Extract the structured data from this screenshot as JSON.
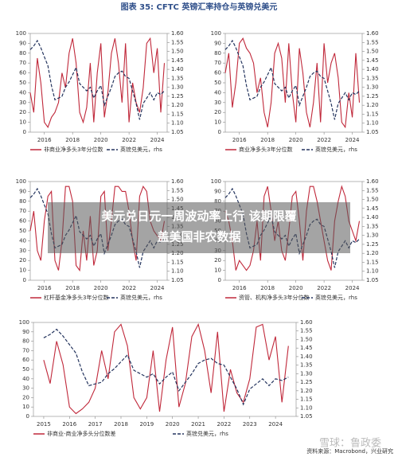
{
  "header": {
    "title": "图表 35: CFTC 英镑汇率持仓与英镑兑美元"
  },
  "overlay": {
    "lines": [
      "美元兑日元一周波动率上行 该期限覆",
      "盖美国非农数据"
    ]
  },
  "footer": {
    "source": "资料来源：Macrobond，兴业研究",
    "watermark": "雪球：鲁政委"
  },
  "chart_data": [
    {
      "type": "line",
      "x": [
        2015,
        2015.25,
        2015.5,
        2015.75,
        2016,
        2016.25,
        2016.5,
        2016.75,
        2017,
        2017.25,
        2017.5,
        2017.75,
        2018,
        2018.25,
        2018.5,
        2018.75,
        2019,
        2019.25,
        2019.5,
        2019.75,
        2020,
        2020.25,
        2020.5,
        2020.75,
        2021,
        2021.25,
        2021.5,
        2021.75,
        2022,
        2022.25,
        2022.5,
        2022.75,
        2023,
        2023.25,
        2023.5,
        2023.75,
        2024,
        2024.25,
        2024.5
      ],
      "xlim": [
        2015,
        2024.7
      ],
      "xticks": [
        2016,
        2018,
        2020,
        2022,
        2024
      ],
      "ylim": [
        0,
        100
      ],
      "yticks": [
        0,
        10,
        20,
        30,
        40,
        50,
        60,
        70,
        80,
        90,
        100
      ],
      "y2lim": [
        1.05,
        1.6
      ],
      "y2ticks": [
        1.05,
        {
          "value": 1.1,
          "label": "1.10"
        },
        1.15,
        {
          "value": 1.2,
          "label": "1.20"
        },
        1.25,
        {
          "value": 1.3,
          "label": "1.30"
        },
        1.35,
        {
          "value": 1.4,
          "label": "1.40"
        },
        1.45,
        {
          "value": 1.5,
          "label": "1.50"
        },
        1.55,
        {
          "value": 1.6,
          "label": "1.60"
        }
      ],
      "series": [
        {
          "name": "非商业净多头3年分位数",
          "color": "#c0283a",
          "values": [
            40,
            20,
            75,
            50,
            10,
            5,
            15,
            20,
            30,
            60,
            45,
            80,
            95,
            70,
            20,
            10,
            25,
            70,
            10,
            60,
            90,
            15,
            40,
            80,
            95,
            70,
            30,
            90,
            10,
            50,
            30,
            20,
            45,
            90,
            95,
            60,
            85,
            20,
            70
          ]
        },
        {
          "name": "英镑兑美元，rhs",
          "color": "#24345e",
          "axis": "y2",
          "values": [
            1.51,
            1.53,
            1.56,
            1.52,
            1.47,
            1.42,
            1.31,
            1.23,
            1.24,
            1.25,
            1.3,
            1.33,
            1.37,
            1.41,
            1.32,
            1.3,
            1.28,
            1.3,
            1.24,
            1.28,
            1.31,
            1.2,
            1.25,
            1.3,
            1.36,
            1.38,
            1.39,
            1.36,
            1.35,
            1.28,
            1.21,
            1.12,
            1.21,
            1.24,
            1.27,
            1.23,
            1.27,
            1.26,
            1.28
          ]
        }
      ]
    },
    {
      "type": "line",
      "x": [
        2015,
        2015.25,
        2015.5,
        2015.75,
        2016,
        2016.25,
        2016.5,
        2016.75,
        2017,
        2017.25,
        2017.5,
        2017.75,
        2018,
        2018.25,
        2018.5,
        2018.75,
        2019,
        2019.25,
        2019.5,
        2019.75,
        2020,
        2020.25,
        2020.5,
        2020.75,
        2021,
        2021.25,
        2021.5,
        2021.75,
        2022,
        2022.25,
        2022.5,
        2022.75,
        2023,
        2023.25,
        2023.5,
        2023.75,
        2024,
        2024.25,
        2024.5
      ],
      "xlim": [
        2015,
        2024.7
      ],
      "xticks": [
        2016,
        2018,
        2020,
        2022,
        2024
      ],
      "ylim": [
        0,
        100
      ],
      "yticks": [
        0,
        10,
        20,
        30,
        40,
        50,
        60,
        70,
        80,
        90,
        100
      ],
      "y2lim": [
        1.05,
        1.6
      ],
      "y2ticks": [
        1.05,
        {
          "value": 1.1,
          "label": "1.10"
        },
        1.15,
        {
          "value": 1.2,
          "label": "1.20"
        },
        1.25,
        {
          "value": 1.3,
          "label": "1.30"
        },
        1.35,
        {
          "value": 1.4,
          "label": "1.40"
        },
        1.45,
        {
          "value": 1.5,
          "label": "1.50"
        },
        1.55,
        {
          "value": 1.6,
          "label": "1.60"
        }
      ],
      "series": [
        {
          "name": "商业净多头3年分位数",
          "color": "#c0283a",
          "values": [
            60,
            80,
            25,
            50,
            90,
            95,
            85,
            80,
            70,
            40,
            55,
            20,
            5,
            30,
            80,
            90,
            75,
            30,
            90,
            40,
            10,
            85,
            60,
            20,
            5,
            30,
            70,
            10,
            90,
            50,
            70,
            80,
            55,
            10,
            5,
            40,
            15,
            80,
            30
          ]
        },
        {
          "name": "英镑兑美元，rhs",
          "color": "#24345e",
          "axis": "y2",
          "values": [
            1.51,
            1.53,
            1.56,
            1.52,
            1.47,
            1.42,
            1.31,
            1.23,
            1.24,
            1.25,
            1.3,
            1.33,
            1.37,
            1.41,
            1.32,
            1.3,
            1.28,
            1.3,
            1.24,
            1.28,
            1.31,
            1.2,
            1.25,
            1.3,
            1.36,
            1.38,
            1.39,
            1.36,
            1.35,
            1.28,
            1.21,
            1.12,
            1.21,
            1.24,
            1.27,
            1.23,
            1.27,
            1.26,
            1.28
          ]
        }
      ]
    },
    {
      "type": "line",
      "x": [
        2015,
        2015.25,
        2015.5,
        2015.75,
        2016,
        2016.25,
        2016.5,
        2016.75,
        2017,
        2017.25,
        2017.5,
        2017.75,
        2018,
        2018.25,
        2018.5,
        2018.75,
        2019,
        2019.25,
        2019.5,
        2019.75,
        2020,
        2020.25,
        2020.5,
        2020.75,
        2021,
        2021.25,
        2021.5,
        2021.75,
        2022,
        2022.25,
        2022.5,
        2022.75,
        2023,
        2023.25,
        2023.5,
        2023.75,
        2024,
        2024.25,
        2024.5
      ],
      "xlim": [
        2015,
        2024.7
      ],
      "xticks": [
        2016,
        2018,
        2020,
        2022,
        2024
      ],
      "ylim": [
        0,
        100
      ],
      "yticks": [
        0,
        10,
        20,
        30,
        40,
        50,
        60,
        70,
        80,
        90,
        100
      ],
      "y2lim": [
        1.05,
        1.6
      ],
      "y2ticks": [
        1.05,
        {
          "value": 1.1,
          "label": "1.10"
        },
        1.15,
        {
          "value": 1.2,
          "label": "1.20"
        },
        1.25,
        {
          "value": 1.3,
          "label": "1.30"
        },
        1.35,
        {
          "value": 1.4,
          "label": "1.40"
        },
        1.45,
        {
          "value": 1.5,
          "label": "1.50"
        },
        1.55,
        {
          "value": 1.6,
          "label": "1.60"
        }
      ],
      "series": [
        {
          "name": "杠杆基金净多头3年分位数",
          "color": "#c0283a",
          "values": [
            50,
            70,
            30,
            20,
            60,
            85,
            90,
            20,
            10,
            40,
            95,
            95,
            80,
            15,
            10,
            50,
            20,
            65,
            15,
            30,
            85,
            90,
            30,
            60,
            95,
            95,
            90,
            90,
            70,
            40,
            20,
            85,
            95,
            90,
            60,
            50,
            45,
            40,
            60
          ]
        },
        {
          "name": "英镑兑美元，rhs",
          "color": "#24345e",
          "axis": "y2",
          "values": [
            1.51,
            1.53,
            1.56,
            1.52,
            1.47,
            1.42,
            1.31,
            1.23,
            1.24,
            1.25,
            1.3,
            1.33,
            1.37,
            1.41,
            1.32,
            1.3,
            1.28,
            1.3,
            1.24,
            1.28,
            1.31,
            1.2,
            1.25,
            1.3,
            1.36,
            1.38,
            1.39,
            1.36,
            1.35,
            1.28,
            1.21,
            1.12,
            1.21,
            1.24,
            1.27,
            1.23,
            1.27,
            1.26,
            1.28
          ]
        }
      ]
    },
    {
      "type": "line",
      "x": [
        2015,
        2015.25,
        2015.5,
        2015.75,
        2016,
        2016.25,
        2016.5,
        2016.75,
        2017,
        2017.25,
        2017.5,
        2017.75,
        2018,
        2018.25,
        2018.5,
        2018.75,
        2019,
        2019.25,
        2019.5,
        2019.75,
        2020,
        2020.25,
        2020.5,
        2020.75,
        2021,
        2021.25,
        2021.5,
        2021.75,
        2022,
        2022.25,
        2022.5,
        2022.75,
        2023,
        2023.25,
        2023.5,
        2023.75,
        2024,
        2024.25,
        2024.5
      ],
      "xlim": [
        2015,
        2024.7
      ],
      "xticks": [
        2016,
        2018,
        2020,
        2022,
        2024
      ],
      "ylim": [
        0,
        100
      ],
      "yticks": [
        0,
        10,
        20,
        30,
        40,
        50,
        60,
        70,
        80,
        90,
        100
      ],
      "y2lim": [
        1.05,
        1.6
      ],
      "y2ticks": [
        1.05,
        {
          "value": 1.1,
          "label": "1.10"
        },
        1.15,
        {
          "value": 1.2,
          "label": "1.20"
        },
        1.25,
        {
          "value": 1.3,
          "label": "1.30"
        },
        1.35,
        {
          "value": 1.4,
          "label": "1.40"
        },
        1.45,
        {
          "value": 1.5,
          "label": "1.50"
        },
        1.55,
        {
          "value": 1.6,
          "label": "1.60"
        }
      ],
      "series": [
        {
          "name": "资管、机构净多头3年分位数",
          "color": "#c0283a",
          "values": [
            70,
            60,
            40,
            10,
            20,
            15,
            10,
            15,
            30,
            60,
            20,
            85,
            95,
            70,
            40,
            60,
            30,
            20,
            50,
            85,
            90,
            60,
            20,
            70,
            95,
            95,
            80,
            60,
            40,
            20,
            10,
            60,
            80,
            95,
            85,
            60,
            50,
            40,
            60
          ]
        },
        {
          "name": "英镑兑美元，rhs",
          "color": "#24345e",
          "axis": "y2",
          "values": [
            1.51,
            1.53,
            1.56,
            1.52,
            1.47,
            1.42,
            1.31,
            1.23,
            1.24,
            1.25,
            1.3,
            1.33,
            1.37,
            1.41,
            1.32,
            1.3,
            1.28,
            1.3,
            1.24,
            1.28,
            1.31,
            1.2,
            1.25,
            1.3,
            1.36,
            1.38,
            1.39,
            1.36,
            1.35,
            1.28,
            1.21,
            1.12,
            1.21,
            1.24,
            1.27,
            1.23,
            1.27,
            1.26,
            1.28
          ]
        }
      ]
    },
    {
      "type": "line",
      "x": [
        2015,
        2015.25,
        2015.5,
        2015.75,
        2016,
        2016.25,
        2016.5,
        2016.75,
        2017,
        2017.25,
        2017.5,
        2017.75,
        2018,
        2018.25,
        2018.5,
        2018.75,
        2019,
        2019.25,
        2019.5,
        2019.75,
        2020,
        2020.25,
        2020.5,
        2020.75,
        2021,
        2021.25,
        2021.5,
        2021.75,
        2022,
        2022.25,
        2022.5,
        2022.75,
        2023,
        2023.25,
        2023.5,
        2023.75,
        2024,
        2024.25,
        2024.5
      ],
      "xlim": [
        2014.6,
        2024.8
      ],
      "xticks": [
        2015,
        2016,
        2017,
        2018,
        2019,
        2020,
        2021,
        2022,
        2023,
        2024
      ],
      "ylim": [
        0,
        100
      ],
      "yticks": [
        0,
        10,
        20,
        30,
        40,
        50,
        60,
        70,
        80,
        90,
        100
      ],
      "y2lim": [
        1.05,
        1.6
      ],
      "y2ticks": [
        1.05,
        {
          "value": 1.1,
          "label": "1.10"
        },
        1.15,
        {
          "value": 1.2,
          "label": "1.20"
        },
        1.25,
        {
          "value": 1.3,
          "label": "1.30"
        },
        1.35,
        {
          "value": 1.4,
          "label": "1.40"
        },
        1.45,
        {
          "value": 1.5,
          "label": "1.50"
        },
        1.55,
        {
          "value": 1.6,
          "label": "1.60"
        }
      ],
      "series": [
        {
          "name": "非商业-商业净多头分位数差",
          "color": "#c0283a",
          "values": [
            60,
            35,
            80,
            55,
            10,
            3,
            8,
            15,
            30,
            70,
            40,
            90,
            98,
            75,
            20,
            8,
            20,
            70,
            5,
            60,
            95,
            10,
            35,
            85,
            98,
            70,
            25,
            90,
            5,
            50,
            25,
            15,
            40,
            95,
            98,
            60,
            85,
            15,
            75
          ]
        },
        {
          "name": "英镑兑美元，rhs",
          "color": "#24345e",
          "axis": "y2",
          "values": [
            1.51,
            1.53,
            1.56,
            1.52,
            1.47,
            1.42,
            1.31,
            1.23,
            1.24,
            1.25,
            1.3,
            1.33,
            1.37,
            1.41,
            1.32,
            1.3,
            1.28,
            1.3,
            1.24,
            1.28,
            1.31,
            1.2,
            1.25,
            1.3,
            1.36,
            1.38,
            1.39,
            1.36,
            1.35,
            1.28,
            1.21,
            1.12,
            1.21,
            1.24,
            1.27,
            1.23,
            1.27,
            1.26,
            1.28
          ]
        }
      ]
    }
  ]
}
